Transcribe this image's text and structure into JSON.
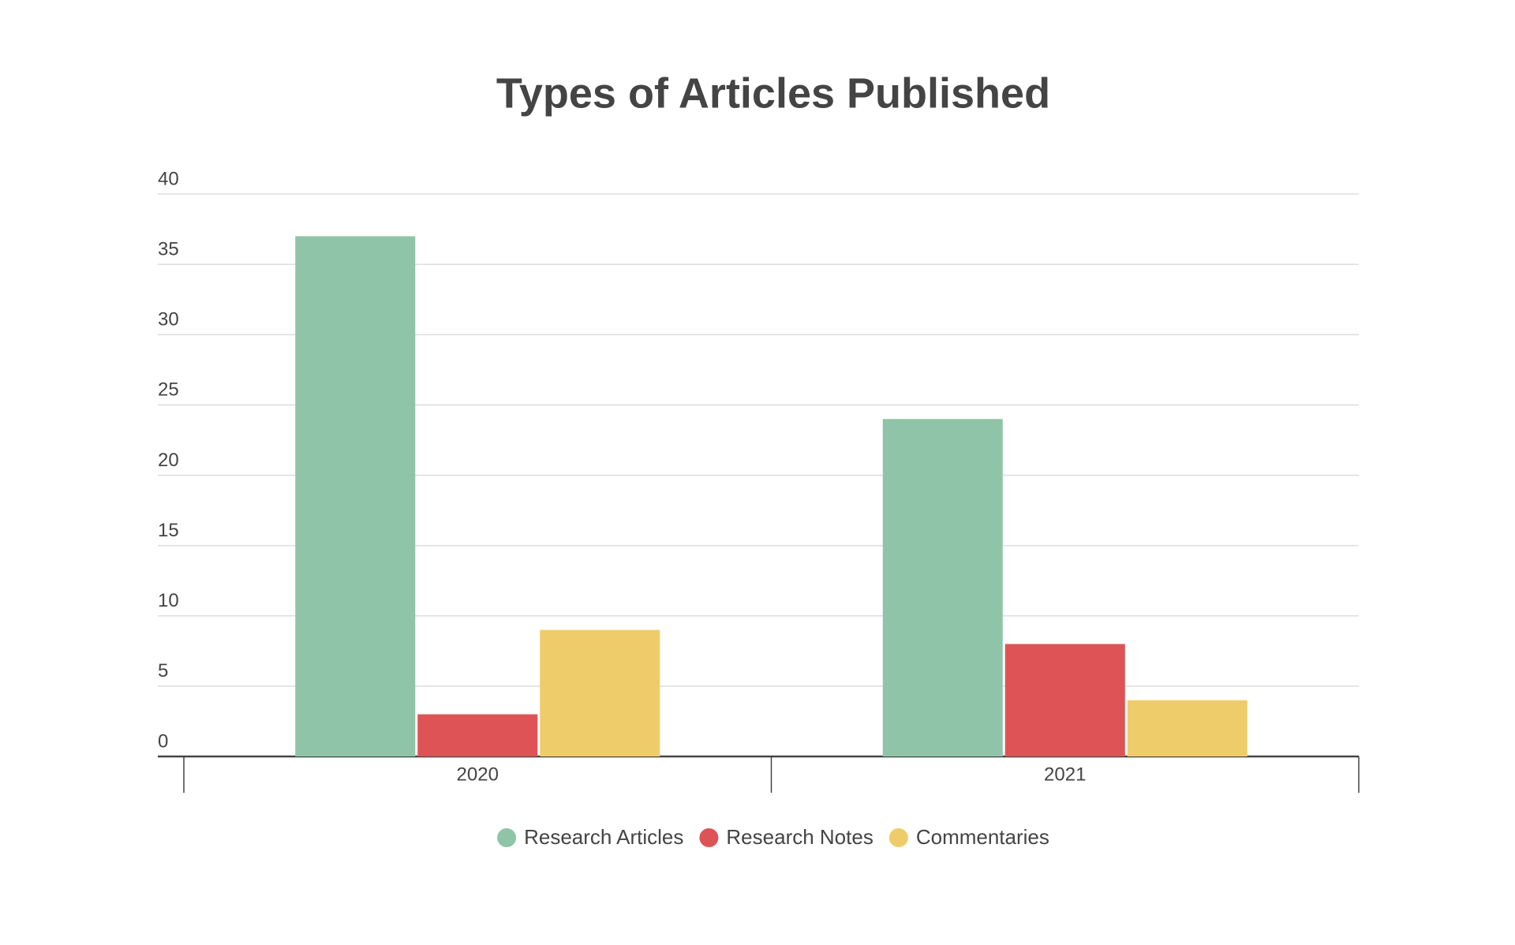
{
  "chart_data": {
    "type": "bar",
    "title": "Types of Articles Published",
    "categories": [
      "2020",
      "2021"
    ],
    "series": [
      {
        "name": "Research Articles",
        "color": "#8fc4a8",
        "values": [
          37,
          24
        ]
      },
      {
        "name": "Research Notes",
        "color": "#dd5356",
        "values": [
          3,
          8
        ]
      },
      {
        "name": "Commentaries",
        "color": "#efcc6a",
        "values": [
          9,
          4
        ]
      }
    ],
    "ylim": [
      0,
      40
    ],
    "yticks": [
      0,
      5,
      10,
      15,
      20,
      25,
      30,
      35,
      40
    ],
    "grid": true,
    "legend": "bottom"
  }
}
